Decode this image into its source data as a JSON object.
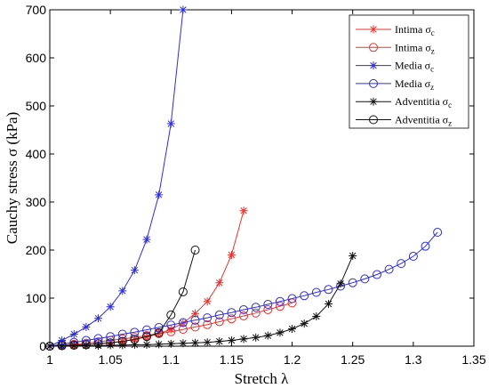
{
  "chart_data": {
    "type": "line",
    "xlabel": "Stretch λ",
    "ylabel": "Cauchy stress σ (kPa)",
    "xlim": [
      1,
      1.35
    ],
    "ylim": [
      0,
      700
    ],
    "xticks": [
      "1",
      "1.05",
      "1.1",
      "1.15",
      "1.2",
      "1.25",
      "1.3",
      "1.35"
    ],
    "yticks": [
      "0",
      "100",
      "200",
      "300",
      "400",
      "500",
      "600",
      "700"
    ],
    "grid": false,
    "legend_position": "top-right",
    "series": [
      {
        "name": "Intima σc",
        "label_main": "Intima σ",
        "label_sub": "c",
        "color": "#e8322f",
        "marker": "star",
        "x": [
          1,
          1.01,
          1.02,
          1.03,
          1.04,
          1.05,
          1.06,
          1.07,
          1.08,
          1.09,
          1.1,
          1.11,
          1.12,
          1.13,
          1.14,
          1.15,
          1.16
        ],
        "y": [
          0,
          1,
          2,
          3,
          5,
          7,
          10,
          14,
          19,
          26,
          35,
          48,
          68,
          93,
          132,
          190,
          282
        ]
      },
      {
        "name": "Intima σz",
        "label_main": "Intima σ",
        "label_sub": "z",
        "color": "#e8322f",
        "marker": "circle",
        "x": [
          1,
          1.01,
          1.02,
          1.03,
          1.04,
          1.05,
          1.06,
          1.07,
          1.08,
          1.09,
          1.1,
          1.11,
          1.12,
          1.13,
          1.14,
          1.15,
          1.16,
          1.17,
          1.18,
          1.19,
          1.2
        ],
        "y": [
          0,
          2,
          4,
          6,
          9,
          12,
          15,
          18,
          22,
          26,
          30,
          35,
          40,
          45,
          51,
          57,
          63,
          69,
          76,
          83,
          90
        ]
      },
      {
        "name": "Media σc",
        "label_main": "Media σ",
        "label_sub": "c",
        "color": "#2c2ce0",
        "marker": "star",
        "x": [
          1,
          1.01,
          1.02,
          1.03,
          1.04,
          1.05,
          1.06,
          1.07,
          1.08,
          1.09,
          1.1,
          1.11
        ],
        "y": [
          0,
          12,
          25,
          40,
          58,
          82,
          115,
          158,
          222,
          315,
          463,
          700
        ]
      },
      {
        "name": "Media σz",
        "label_main": "Media σ",
        "label_sub": "z",
        "color": "#2c2ce0",
        "marker": "circle",
        "x": [
          1,
          1.01,
          1.02,
          1.03,
          1.04,
          1.05,
          1.06,
          1.07,
          1.08,
          1.09,
          1.1,
          1.11,
          1.12,
          1.13,
          1.14,
          1.15,
          1.16,
          1.17,
          1.18,
          1.19,
          1.2,
          1.21,
          1.22,
          1.23,
          1.24,
          1.25,
          1.26,
          1.27,
          1.28,
          1.29,
          1.3,
          1.31,
          1.32
        ],
        "y": [
          0,
          4,
          8,
          12,
          16,
          20,
          25,
          29,
          34,
          39,
          44,
          49,
          54,
          59,
          65,
          70,
          76,
          81,
          87,
          93,
          99,
          105,
          112,
          118,
          125,
          132,
          140,
          149,
          160,
          172,
          187,
          208,
          237
        ]
      },
      {
        "name": "Adventitia σc",
        "label_main": "Adventitia σ",
        "label_sub": "c",
        "color": "#111111",
        "marker": "star",
        "x": [
          1,
          1.01,
          1.02,
          1.03,
          1.04,
          1.05,
          1.06,
          1.07,
          1.08,
          1.09,
          1.1,
          1.11,
          1.12,
          1.13,
          1.14,
          1.15,
          1.16,
          1.17,
          1.18,
          1.19,
          1.2,
          1.21,
          1.22,
          1.23,
          1.24,
          1.25
        ],
        "y": [
          0,
          0,
          1,
          1,
          1,
          2,
          2,
          3,
          3,
          4,
          5,
          6,
          7,
          8,
          10,
          12,
          15,
          18,
          22,
          28,
          36,
          47,
          62,
          88,
          130,
          188
        ]
      },
      {
        "name": "Adventitia σz",
        "label_main": "Adventitia σ",
        "label_sub": "z",
        "color": "#111111",
        "marker": "circle",
        "x": [
          1,
          1.01,
          1.02,
          1.03,
          1.04,
          1.05,
          1.06,
          1.07,
          1.08,
          1.09,
          1.1,
          1.11,
          1.12
        ],
        "y": [
          0,
          1,
          2,
          3,
          5,
          7,
          10,
          14,
          20,
          28,
          65,
          113,
          200
        ]
      }
    ]
  }
}
